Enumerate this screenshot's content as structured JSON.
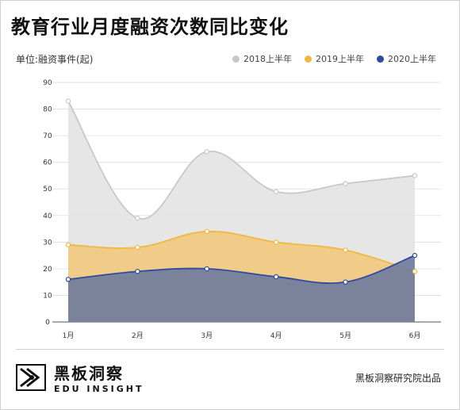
{
  "title": "教育行业月度融资次数同比变化",
  "unit_label": "单位:融资事件(起)",
  "legend": [
    {
      "name": "2018上半年",
      "color": "#c8c8c8"
    },
    {
      "name": "2019上半年",
      "color": "#f0b840"
    },
    {
      "name": "2020上半年",
      "color": "#2f4aa0"
    }
  ],
  "chart_data": {
    "type": "area",
    "categories": [
      "1月",
      "2月",
      "3月",
      "4月",
      "5月",
      "6月"
    ],
    "ylim": [
      0,
      90
    ],
    "yticks": [
      0,
      10,
      20,
      30,
      40,
      50,
      60,
      70,
      80,
      90
    ],
    "grid": true,
    "legend_position": "top-right",
    "series": [
      {
        "name": "2018上半年",
        "values": [
          83,
          39,
          64,
          49,
          52,
          55
        ],
        "color": "#c8c8c8",
        "fill": "#e3e3e3"
      },
      {
        "name": "2019上半年",
        "values": [
          29,
          28,
          34,
          30,
          27,
          19
        ],
        "color": "#f0b840",
        "fill": "#f2c97e"
      },
      {
        "name": "2020上半年",
        "values": [
          16,
          19,
          20,
          17,
          15,
          25
        ],
        "color": "#2f4aa0",
        "fill": "#6e7b9e"
      }
    ]
  },
  "logo": {
    "cn": "黑板洞察",
    "en": "EDU INSIGHT"
  },
  "credit": "黑板洞察研究院出品"
}
